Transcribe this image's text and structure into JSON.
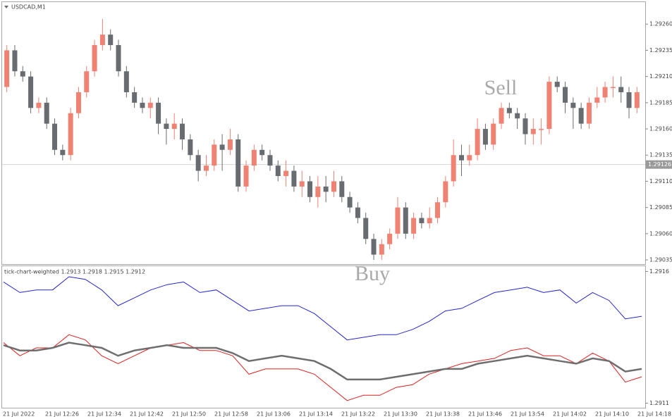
{
  "chart_data": [
    {
      "type": "candlestick",
      "title": "USDCAD,M1",
      "up_color": "#ef8273",
      "down_color": "#686b70",
      "open": [
        1.292,
        1.29235,
        1.29215,
        1.2921,
        1.2918,
        1.29185,
        1.29165,
        1.2914,
        1.29135,
        1.29175,
        1.29195,
        1.29215,
        1.2924,
        1.2925,
        1.2924,
        1.29215,
        1.29195,
        1.29185,
        1.2918,
        1.29185,
        1.29165,
        1.2916,
        1.29165,
        1.2915,
        1.29135,
        1.2912,
        1.29125,
        1.29145,
        1.2914,
        1.2915,
        1.29105,
        1.29125,
        1.2914,
        1.29135,
        1.29125,
        1.29115,
        1.2912,
        1.29105,
        1.2911,
        1.29095,
        1.29105,
        1.291,
        1.2911,
        1.29095,
        1.29085,
        1.29075,
        1.29055,
        1.2904,
        1.2905,
        1.2906,
        1.29085,
        1.2906,
        1.29075,
        1.2907,
        1.29075,
        1.2909,
        1.2911,
        1.29135,
        1.2913,
        1.29135,
        1.2916,
        1.29145,
        1.29165,
        1.2918,
        1.29175,
        1.2917,
        1.29155,
        1.2916,
        1.2916,
        1.29205,
        1.292,
        1.29185,
        1.2918,
        1.29165,
        1.29185,
        1.2919,
        1.292,
        1.292,
        1.29195,
        1.2918
      ],
      "high": [
        1.2924,
        1.2924,
        1.2922,
        1.29215,
        1.2919,
        1.2919,
        1.2917,
        1.29145,
        1.2918,
        1.292,
        1.2922,
        1.29245,
        1.29265,
        1.29255,
        1.29245,
        1.2922,
        1.292,
        1.2919,
        1.2919,
        1.2919,
        1.2917,
        1.29175,
        1.2917,
        1.29155,
        1.2914,
        1.29135,
        1.2915,
        1.29155,
        1.2916,
        1.29155,
        1.2913,
        1.29145,
        1.29145,
        1.2914,
        1.2913,
        1.2913,
        1.29125,
        1.2912,
        1.29115,
        1.29115,
        1.29115,
        1.2912,
        1.29115,
        1.291,
        1.2909,
        1.2908,
        1.2906,
        1.29055,
        1.29065,
        1.29095,
        1.2909,
        1.2908,
        1.2908,
        1.29085,
        1.29095,
        1.29115,
        1.2915,
        1.29145,
        1.29145,
        1.2917,
        1.29165,
        1.2917,
        1.29185,
        1.29185,
        1.2918,
        1.29175,
        1.2917,
        1.2917,
        1.2921,
        1.2921,
        1.29205,
        1.2919,
        1.29185,
        1.2919,
        1.292,
        1.29205,
        1.2921,
        1.2921,
        1.292,
        1.292
      ],
      "low": [
        1.29195,
        1.2921,
        1.29205,
        1.29175,
        1.29175,
        1.2916,
        1.29135,
        1.2913,
        1.2913,
        1.2917,
        1.2919,
        1.2921,
        1.29235,
        1.29235,
        1.2921,
        1.2919,
        1.2918,
        1.29175,
        1.2917,
        1.29155,
        1.29145,
        1.2915,
        1.2914,
        1.2913,
        1.2911,
        1.29115,
        1.2912,
        1.2912,
        1.29135,
        1.291,
        1.291,
        1.2912,
        1.2913,
        1.2912,
        1.2911,
        1.29105,
        1.291,
        1.29095,
        1.2909,
        1.29085,
        1.2909,
        1.29095,
        1.2909,
        1.2908,
        1.2907,
        1.2905,
        1.29035,
        1.29035,
        1.29045,
        1.29055,
        1.29055,
        1.29055,
        1.29065,
        1.29065,
        1.2907,
        1.29085,
        1.29105,
        1.29115,
        1.29125,
        1.2913,
        1.2914,
        1.2914,
        1.2916,
        1.2917,
        1.2916,
        1.29145,
        1.29145,
        1.29145,
        1.29155,
        1.29195,
        1.29175,
        1.2916,
        1.2916,
        1.2916,
        1.2918,
        1.29185,
        1.2919,
        1.29185,
        1.2917,
        1.29175
      ],
      "close": [
        1.29235,
        1.29215,
        1.2921,
        1.2918,
        1.29185,
        1.29165,
        1.2914,
        1.29135,
        1.29175,
        1.29195,
        1.29215,
        1.2924,
        1.2925,
        1.2924,
        1.29215,
        1.29195,
        1.29185,
        1.2918,
        1.29185,
        1.29165,
        1.2916,
        1.29165,
        1.2915,
        1.29135,
        1.2912,
        1.29125,
        1.29145,
        1.2914,
        1.2915,
        1.29105,
        1.29125,
        1.2914,
        1.29135,
        1.29125,
        1.29115,
        1.2912,
        1.29105,
        1.2911,
        1.29095,
        1.29105,
        1.291,
        1.2911,
        1.29095,
        1.29085,
        1.29075,
        1.29055,
        1.2904,
        1.2905,
        1.2906,
        1.29085,
        1.2906,
        1.29075,
        1.2907,
        1.29075,
        1.2909,
        1.2911,
        1.29135,
        1.2913,
        1.29135,
        1.2916,
        1.29145,
        1.29165,
        1.2918,
        1.29175,
        1.2917,
        1.29155,
        1.2916,
        1.2916,
        1.29205,
        1.292,
        1.29185,
        1.2918,
        1.29165,
        1.29185,
        1.2919,
        1.292,
        1.292,
        1.29195,
        1.2918,
        1.29195
      ],
      "ylim": [
        1.29031,
        1.29281
      ],
      "yticks": [
        {
          "value": 1.2926,
          "label": "1.29260"
        },
        1.29235,
        {
          "value": 1.2921,
          "label": "1.29210"
        },
        1.29185,
        {
          "value": 1.2916,
          "label": "1.29160"
        },
        1.29135,
        {
          "value": 1.2911,
          "label": "1.29110"
        },
        1.29085,
        {
          "value": 1.2906,
          "label": "1.29060"
        },
        1.29035
      ],
      "current_price": 1.29126,
      "annotations": [
        "Sell",
        "Buy"
      ],
      "xlabels": [
        "21 Jul 2022",
        "21 Jul 12:26",
        "21 Jul 12:34",
        "21 Jul 12:42",
        "21 Jul 12:50",
        "21 Jul 12:58",
        "21 Jul 13:06",
        "21 Jul 13:14",
        "21 Jul 13:22",
        "21 Jul 13:30",
        "21 Jul 13:38",
        "21 Jul 13:46",
        "21 Jul 13:54",
        "21 Jul 14:02",
        "21 Jul 14:10",
        "21 Jul 14:18"
      ]
    },
    {
      "type": "line",
      "title": "tick-chart-weighted 1.2913 1.2918 1.2915 1.2912",
      "series": [
        {
          "color": "#2424d8",
          "values": [
            1.29156,
            1.29152,
            1.29153,
            1.29153,
            1.29158,
            1.29157,
            1.29153,
            1.29147,
            1.2915,
            1.29153,
            1.29155,
            1.29156,
            1.29152,
            1.29153,
            1.29149,
            1.29145,
            1.29146,
            1.29147,
            1.29147,
            1.29144,
            1.29139,
            1.29134,
            1.29135,
            1.29136,
            1.29136,
            1.29138,
            1.29141,
            1.29145,
            1.29146,
            1.29149,
            1.29152,
            1.29153,
            1.29154,
            1.29152,
            1.29153,
            1.29148,
            1.29152,
            1.29149,
            1.29142,
            1.29143
          ]
        },
        {
          "color": "#e21e1e",
          "values": [
            1.29133,
            1.29128,
            1.29131,
            1.29131,
            1.29136,
            1.29134,
            1.29128,
            1.29125,
            1.29128,
            1.29131,
            1.29132,
            1.29133,
            1.2913,
            1.2913,
            1.29128,
            1.29121,
            1.29123,
            1.29123,
            1.29123,
            1.29121,
            1.29116,
            1.29111,
            1.29113,
            1.29113,
            1.29116,
            1.29117,
            1.29121,
            1.29123,
            1.29125,
            1.29126,
            1.29127,
            1.2913,
            1.29131,
            1.29128,
            1.29128,
            1.29125,
            1.29129,
            1.29126,
            1.29118,
            1.2912
          ]
        },
        {
          "color": "#6e6e6e",
          "values": [
            1.29132,
            1.2913,
            1.2913,
            1.29131,
            1.29133,
            1.29132,
            1.29131,
            1.29128,
            1.2913,
            1.29131,
            1.29132,
            1.29131,
            1.29131,
            1.29131,
            1.29129,
            1.29126,
            1.29127,
            1.29128,
            1.29127,
            1.29126,
            1.29123,
            1.29119,
            1.29119,
            1.29119,
            1.2912,
            1.29121,
            1.29122,
            1.29123,
            1.29123,
            1.29125,
            1.29126,
            1.29127,
            1.29128,
            1.29127,
            1.29126,
            1.29125,
            1.29127,
            1.29126,
            1.29122,
            1.29123
          ]
        }
      ],
      "ylim": [
        1.29108,
        1.29162
      ],
      "yticks": [
        1.2916,
        1.2911
      ]
    }
  ]
}
